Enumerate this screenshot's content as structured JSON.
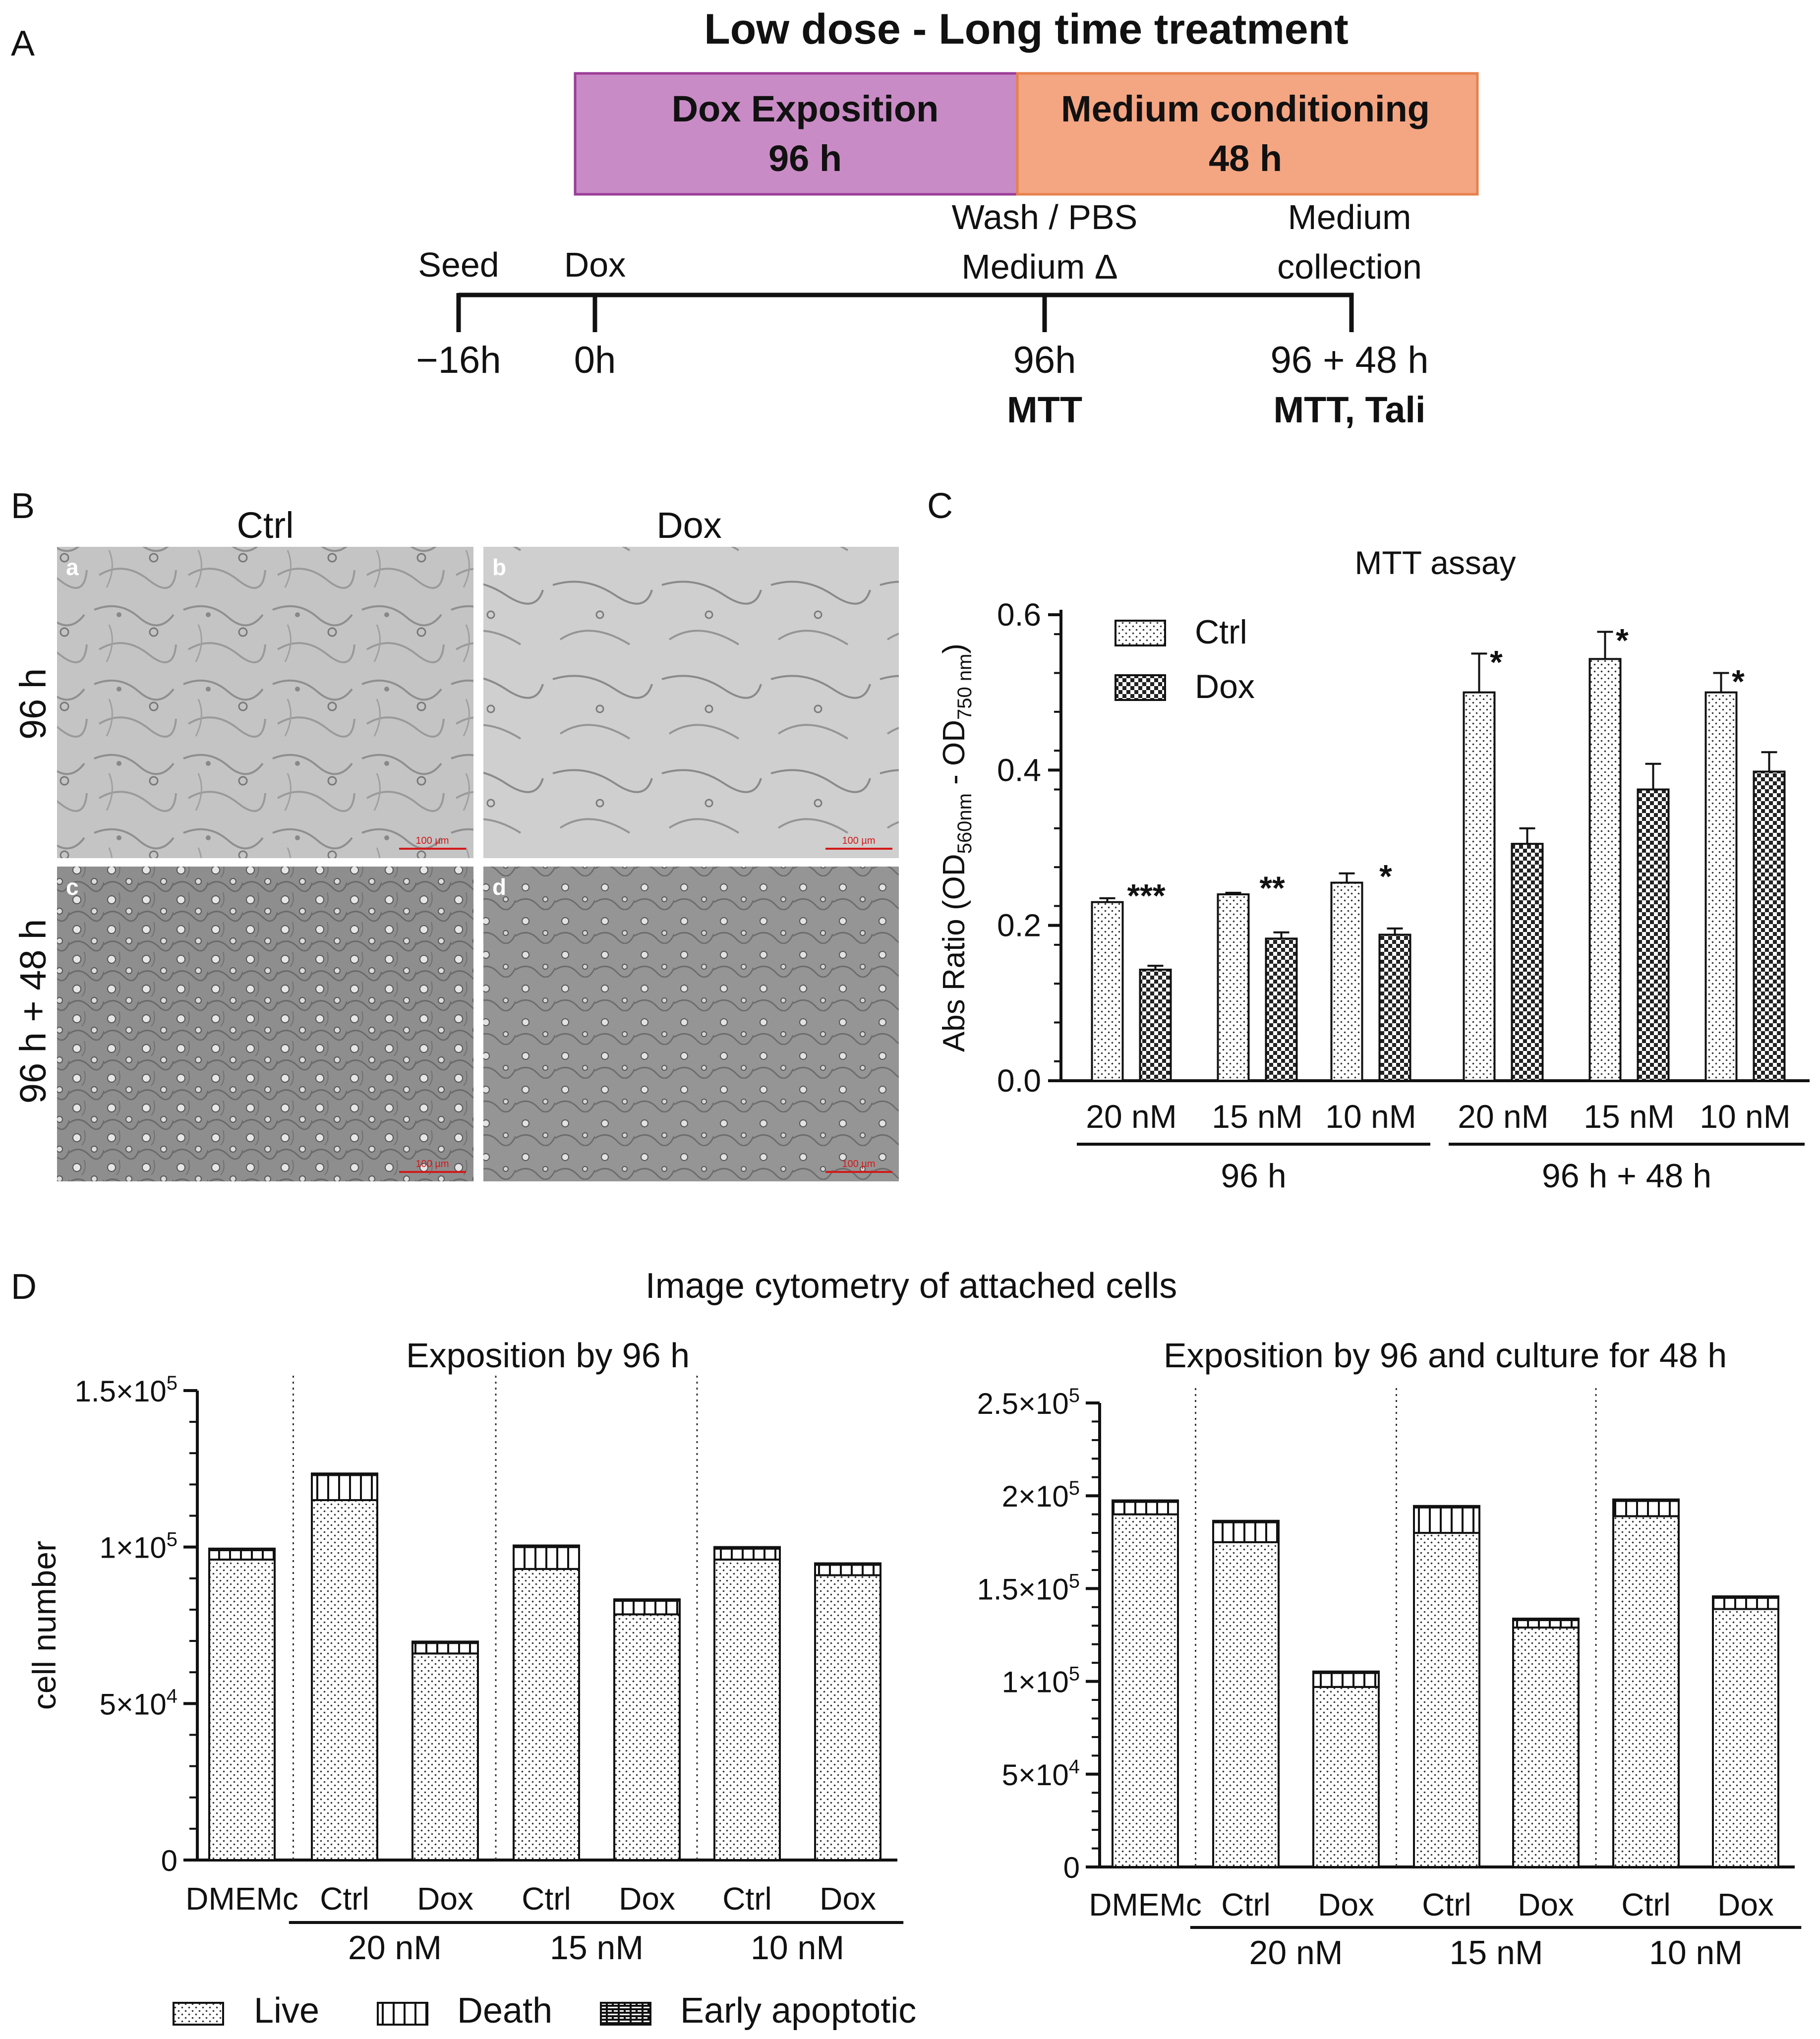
{
  "panel_letters": [
    "A",
    "B",
    "C",
    "D"
  ],
  "panelA": {
    "title": "Low dose - Long time treatment",
    "box1": {
      "line1": "Dox Exposition",
      "line2": "96 h",
      "color": "#c98bc6"
    },
    "box2": {
      "line1": "Medium conditioning",
      "line2": "48 h",
      "color": "#f4a582"
    },
    "events": [
      {
        "top": [
          "Seed"
        ],
        "time": "−16h",
        "bottom": ""
      },
      {
        "top": [
          "Dox"
        ],
        "time": "0h",
        "bottom": ""
      },
      {
        "top": [
          "Wash / PBS",
          "Medium Δ"
        ],
        "time": "96h",
        "bottom": "MTT"
      },
      {
        "top": [
          "Medium",
          "collection"
        ],
        "time": "96 + 48 h",
        "bottom": "MTT, Tali"
      }
    ]
  },
  "panelB": {
    "col_labels": [
      "Ctrl",
      "Dox"
    ],
    "row_labels": [
      "96 h",
      "96 h + 48 h"
    ],
    "images": [
      {
        "letter": "a",
        "scale": "100 µm"
      },
      {
        "letter": "b",
        "scale": "100 µm"
      },
      {
        "letter": "c",
        "scale": "100 µm"
      },
      {
        "letter": "d",
        "scale": "100 µm"
      }
    ]
  },
  "chart_data": [
    {
      "type": "bar",
      "title": "MTT assay",
      "ylabel": "Abs Ratio (OD560nm - OD750 nm)",
      "ylabel_parts": {
        "pre": "Abs Ratio (OD",
        "sub1": "560nm",
        "mid": " - OD",
        "sub2": "750 nm",
        "post": ")"
      },
      "ylim": [
        0,
        0.6
      ],
      "yticks": [
        "0.0",
        "0.2",
        "0.4",
        "0.6"
      ],
      "categories": [
        "20 nM",
        "15 nM",
        "10 nM",
        "20 nM",
        "15 nM",
        "10 nM"
      ],
      "groups": [
        {
          "label": "96 h",
          "span": [
            0,
            2
          ]
        },
        {
          "label": "96 h + 48 h",
          "span": [
            3,
            5
          ]
        }
      ],
      "series": [
        {
          "name": "Ctrl",
          "values": [
            0.23,
            0.24,
            0.255,
            0.5,
            0.543,
            0.5
          ],
          "errors": [
            0.005,
            0.002,
            0.012,
            0.05,
            0.035,
            0.025
          ]
        },
        {
          "name": "Dox",
          "values": [
            0.143,
            0.183,
            0.188,
            0.305,
            0.375,
            0.398
          ],
          "errors": [
            0.005,
            0.008,
            0.008,
            0.02,
            0.033,
            0.025
          ]
        }
      ],
      "significance": [
        "***",
        "**",
        "*",
        "*",
        "*",
        "*"
      ],
      "legend": "top-left"
    },
    {
      "type": "bar",
      "stacked": true,
      "title": "Exposition by 96 h",
      "ylabel": "cell number",
      "ylim": [
        0,
        150000
      ],
      "yticks": [
        {
          "value": 0,
          "mant": "0",
          "exp": ""
        },
        {
          "value": 50000,
          "mant": "5×10",
          "exp": "4"
        },
        {
          "value": 100000,
          "mant": "1×10",
          "exp": "5"
        },
        {
          "value": 150000,
          "mant": "1.5×10",
          "exp": "5"
        }
      ],
      "categories": [
        "DMEMc",
        "Ctrl",
        "Dox",
        "Ctrl",
        "Dox",
        "Ctrl",
        "Dox"
      ],
      "groups": [
        {
          "label": "20 nM",
          "span": [
            1,
            2
          ]
        },
        {
          "label": "15 nM",
          "span": [
            3,
            4
          ]
        },
        {
          "label": "10 nM",
          "span": [
            5,
            6
          ]
        }
      ],
      "series": [
        {
          "name": "Live",
          "values": [
            96000,
            115000,
            66000,
            93000,
            78500,
            96000,
            91000
          ]
        },
        {
          "name": "Death",
          "values": [
            3000,
            8000,
            3500,
            7000,
            4500,
            3500,
            3500
          ]
        },
        {
          "name": "Early apoptotic",
          "values": [
            500,
            500,
            300,
            500,
            300,
            500,
            300
          ]
        }
      ]
    },
    {
      "type": "bar",
      "stacked": true,
      "title": "Exposition by 96 and culture for 48 h",
      "ylabel": "",
      "ylim": [
        0,
        250000
      ],
      "yticks": [
        {
          "value": 0,
          "mant": "0",
          "exp": ""
        },
        {
          "value": 50000,
          "mant": "5×10",
          "exp": "4"
        },
        {
          "value": 100000,
          "mant": "1×10",
          "exp": "5"
        },
        {
          "value": 150000,
          "mant": "1.5×10",
          "exp": "5"
        },
        {
          "value": 200000,
          "mant": "2×10",
          "exp": "5"
        },
        {
          "value": 250000,
          "mant": "2.5×10",
          "exp": "5"
        }
      ],
      "categories": [
        "DMEMc",
        "Ctrl",
        "Dox",
        "Ctrl",
        "Dox",
        "Ctrl",
        "Dox"
      ],
      "groups": [
        {
          "label": "20 nM",
          "span": [
            1,
            2
          ]
        },
        {
          "label": "15 nM",
          "span": [
            3,
            4
          ]
        },
        {
          "label": "10 nM",
          "span": [
            5,
            6
          ]
        }
      ],
      "series": [
        {
          "name": "Live",
          "values": [
            190000,
            175000,
            97000,
            180000,
            129000,
            189000,
            139000
          ]
        },
        {
          "name": "Death",
          "values": [
            7000,
            11000,
            8000,
            14000,
            4500,
            8500,
            6500
          ]
        },
        {
          "name": "Early apoptotic",
          "values": [
            500,
            500,
            300,
            500,
            300,
            500,
            300
          ]
        }
      ]
    }
  ],
  "panelD": {
    "title": "Image cytometry of attached cells",
    "legend": [
      "Live",
      "Death",
      "Early apoptotic"
    ]
  },
  "colors": {
    "dox_box": "#c98bc6",
    "medium_box": "#f4a582",
    "scale_bar": "#d11a1a"
  }
}
